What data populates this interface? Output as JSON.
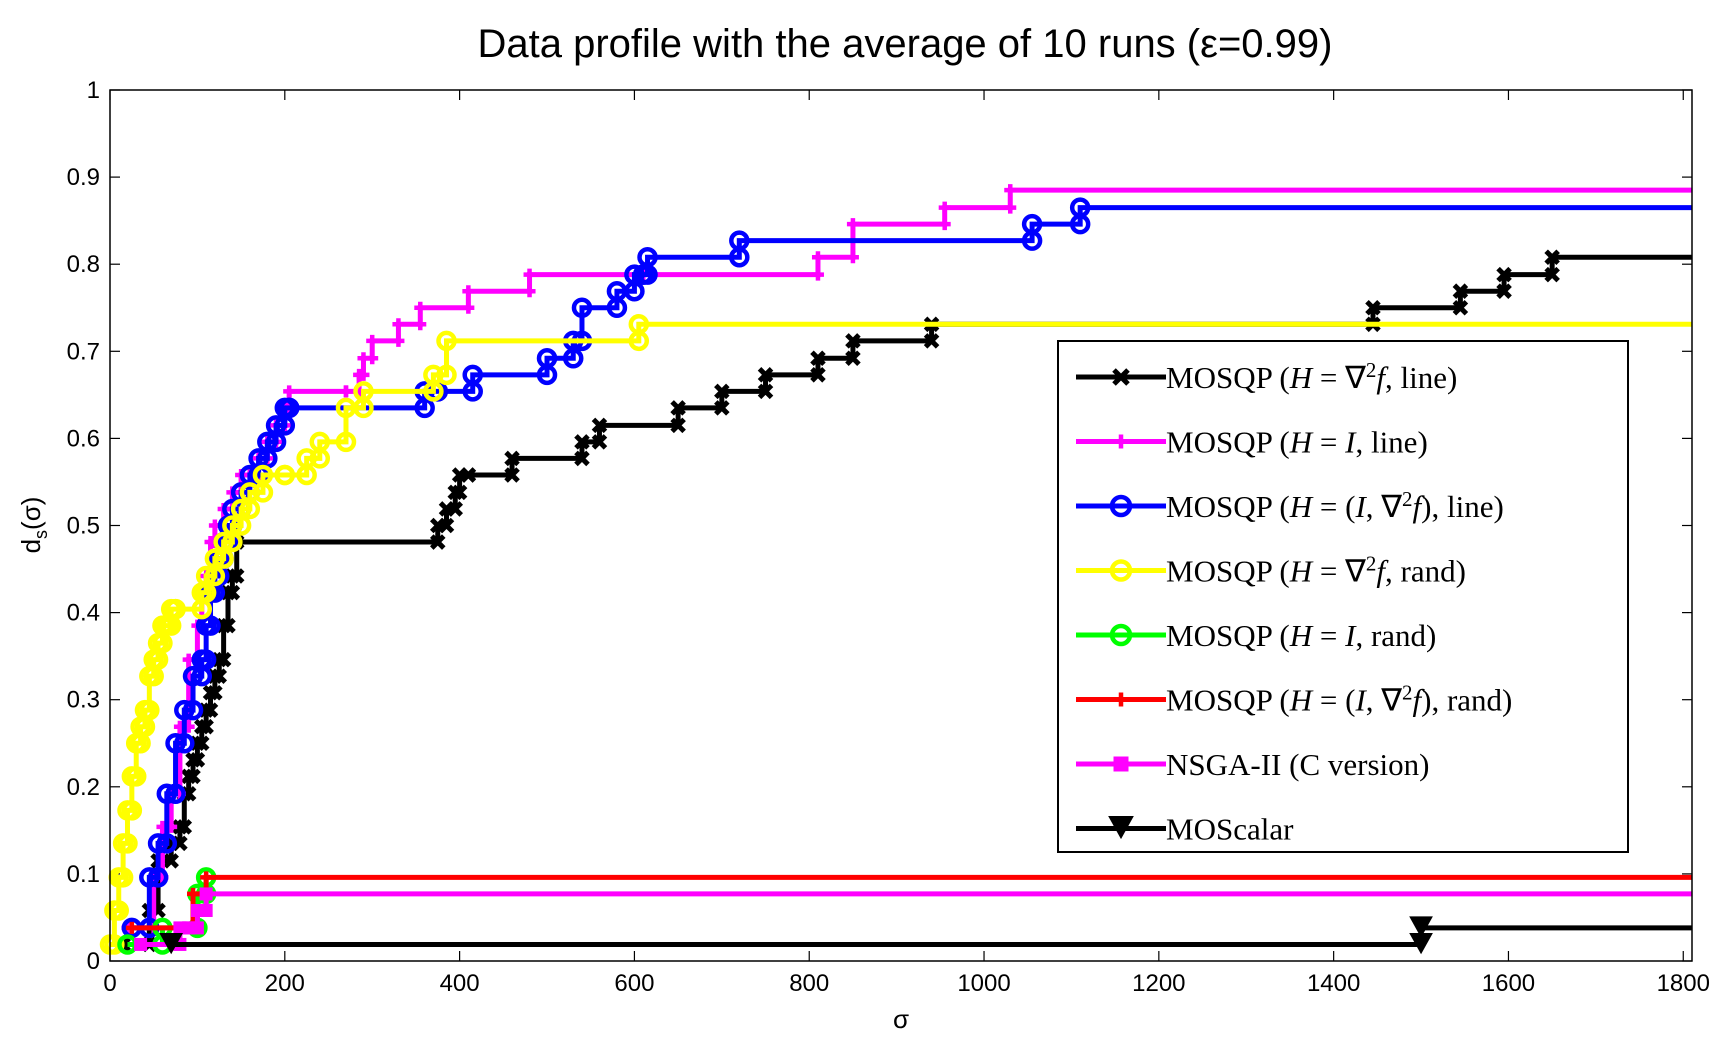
{
  "chart_data": {
    "type": "line",
    "step": true,
    "title": "Data profile with the average of 10 runs (ε=0.99)",
    "xlabel": "σ",
    "ylabel_main": "d",
    "ylabel_sub": "s",
    "ylabel_tail": "(σ)",
    "xlim": [
      0,
      1810
    ],
    "ylim": [
      0,
      1
    ],
    "xticks": [
      0,
      200,
      400,
      600,
      800,
      1000,
      1200,
      1400,
      1600,
      1800
    ],
    "yticks": [
      0,
      0.1,
      0.2,
      0.3,
      0.4,
      0.5,
      0.6,
      0.7,
      0.8,
      0.9,
      1
    ],
    "grid": false,
    "legend_position": "lower-right",
    "series": [
      {
        "name": "MOSQP (H = ∇²f, line)",
        "legend_parts": [
          "MOSQP (",
          "H",
          " = ∇",
          "2",
          "f",
          ", line)"
        ],
        "color": "#000000",
        "marker": "x",
        "x": [
          15,
          45,
          55,
          70,
          80,
          85,
          90,
          95,
          100,
          105,
          110,
          115,
          120,
          125,
          130,
          135,
          140,
          145,
          375,
          385,
          395,
          400,
          410,
          460,
          540,
          560,
          650,
          700,
          750,
          810,
          850,
          940,
          1445,
          1545,
          1595,
          1650
        ],
        "y": [
          0.019,
          0.058,
          0.115,
          0.135,
          0.154,
          0.192,
          0.212,
          0.231,
          0.25,
          0.269,
          0.288,
          0.308,
          0.327,
          0.346,
          0.385,
          0.423,
          0.442,
          0.481,
          0.5,
          0.519,
          0.538,
          0.558,
          0.558,
          0.577,
          0.596,
          0.615,
          0.635,
          0.654,
          0.673,
          0.692,
          0.712,
          0.731,
          0.75,
          0.769,
          0.788,
          0.808
        ],
        "end_x": 1810
      },
      {
        "name": "MOSQP (H = I, line)",
        "legend_parts": [
          "MOSQP (",
          "H",
          " = ",
          "I",
          ", line)"
        ],
        "color": "#ff00ff",
        "marker": "+",
        "x": [
          20,
          50,
          60,
          70,
          80,
          90,
          100,
          105,
          110,
          115,
          120,
          130,
          140,
          150,
          160,
          170,
          180,
          190,
          200,
          205,
          270,
          285,
          290,
          300,
          330,
          355,
          410,
          480,
          610,
          810,
          850,
          955,
          1030
        ],
        "y": [
          0.038,
          0.096,
          0.154,
          0.192,
          0.269,
          0.346,
          0.385,
          0.423,
          0.442,
          0.481,
          0.5,
          0.519,
          0.538,
          0.558,
          0.558,
          0.577,
          0.596,
          0.615,
          0.635,
          0.654,
          0.654,
          0.673,
          0.692,
          0.712,
          0.731,
          0.75,
          0.769,
          0.788,
          0.788,
          0.808,
          0.846,
          0.865,
          0.885
        ],
        "end_x": 1810
      },
      {
        "name": "MOSQP (H = (I, ∇²f), line)",
        "legend_parts": [
          "MOSQP (",
          "H",
          " = (",
          "I",
          ", ∇",
          "2",
          "f",
          "), line)"
        ],
        "color": "#0000ff",
        "marker": "o",
        "x": [
          25,
          45,
          55,
          65,
          75,
          85,
          95,
          105,
          110,
          115,
          120,
          125,
          130,
          135,
          140,
          150,
          160,
          170,
          180,
          190,
          200,
          205,
          360,
          375,
          415,
          500,
          530,
          540,
          580,
          600,
          610,
          615,
          720,
          1055,
          1110
        ],
        "y": [
          0.038,
          0.096,
          0.135,
          0.192,
          0.25,
          0.288,
          0.327,
          0.346,
          0.385,
          0.423,
          0.442,
          0.462,
          0.481,
          0.5,
          0.519,
          0.538,
          0.558,
          0.577,
          0.596,
          0.615,
          0.635,
          0.635,
          0.654,
          0.654,
          0.673,
          0.692,
          0.712,
          0.75,
          0.769,
          0.788,
          0.788,
          0.808,
          0.827,
          0.846,
          0.865
        ],
        "end_x": 1810
      },
      {
        "name": "MOSQP (H = ∇²f, rand)",
        "legend_parts": [
          "MOSQP (",
          "H",
          " = ∇",
          "2",
          "f",
          ", rand)"
        ],
        "color": "#ffff00",
        "marker": "o",
        "x": [
          0,
          5,
          10,
          15,
          20,
          25,
          30,
          35,
          40,
          45,
          50,
          55,
          60,
          65,
          70,
          75,
          105,
          110,
          120,
          130,
          140,
          150,
          160,
          175,
          200,
          225,
          240,
          270,
          290,
          370,
          385,
          605
        ],
        "y": [
          0.019,
          0.058,
          0.096,
          0.135,
          0.173,
          0.212,
          0.25,
          0.269,
          0.288,
          0.327,
          0.346,
          0.365,
          0.385,
          0.385,
          0.404,
          0.404,
          0.423,
          0.442,
          0.462,
          0.481,
          0.5,
          0.519,
          0.538,
          0.558,
          0.558,
          0.577,
          0.596,
          0.635,
          0.654,
          0.673,
          0.712,
          0.731
        ],
        "end_x": 1810
      },
      {
        "name": "MOSQP (H = I, rand)",
        "legend_parts": [
          "MOSQP (",
          "H",
          " = ",
          "I",
          ", rand)"
        ],
        "color": "#00ff00",
        "marker": "o",
        "x": [
          20,
          60,
          100,
          110
        ],
        "y": [
          0.019,
          0.038,
          0.077,
          0.096
        ],
        "end_x": 110
      },
      {
        "name": "MOSQP (H = (I, ∇²f), rand)",
        "legend_parts": [
          "MOSQP (",
          "H",
          " = (",
          "I",
          ", ∇",
          "2",
          "f",
          "), rand)"
        ],
        "color": "#ff0000",
        "marker": "+",
        "x": [
          25,
          95,
          110
        ],
        "y": [
          0.038,
          0.077,
          0.096
        ],
        "end_x": 1810
      },
      {
        "name": "NSGA-II (C version)",
        "legend_parts": [
          "NSGA-II (C version)"
        ],
        "color": "#ff00ff",
        "marker": "s",
        "x": [
          35,
          80,
          90,
          100,
          110
        ],
        "y": [
          0.019,
          0.038,
          0.038,
          0.058,
          0.077
        ],
        "end_x": 1810
      },
      {
        "name": "MOScalar",
        "legend_parts": [
          "MOScalar"
        ],
        "color": "#000000",
        "marker": "v",
        "x": [
          70,
          1500
        ],
        "y": [
          0.019,
          0.038
        ],
        "end_x": 1810
      }
    ]
  }
}
